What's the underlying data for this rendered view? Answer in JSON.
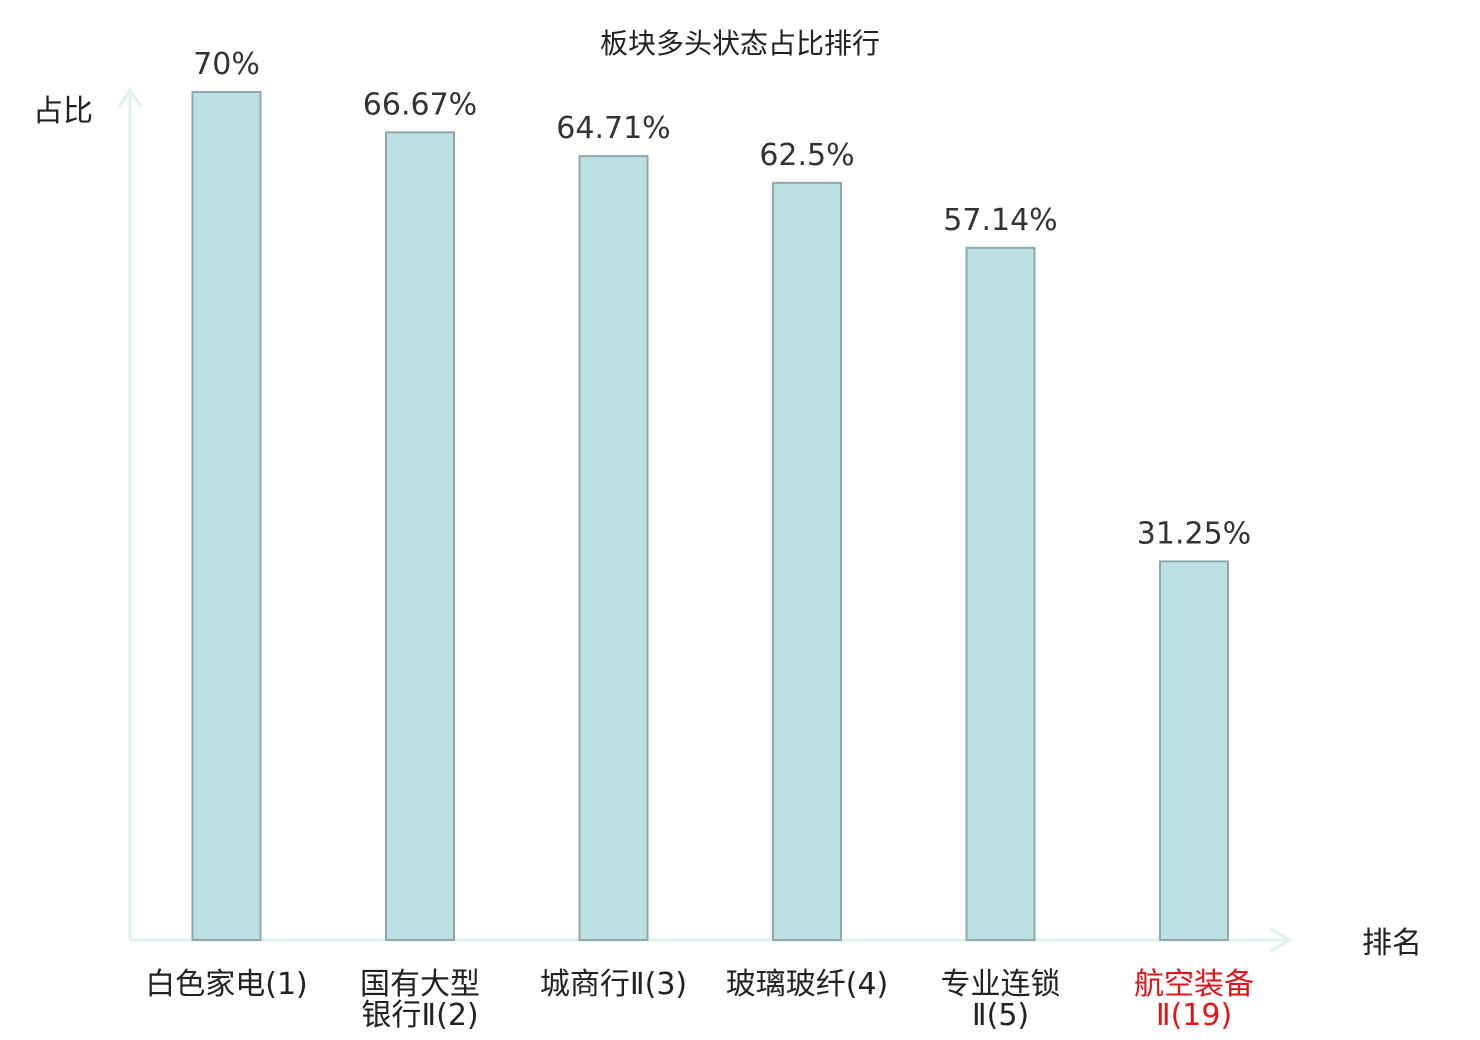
{
  "chart_data": {
    "type": "bar",
    "title": "板块多头状态占比排行",
    "ylabel": "占比",
    "xlabel": "排名",
    "ylim": [
      0,
      75
    ],
    "grid": false,
    "legend": "none",
    "categories": [
      {
        "lines": [
          "白色家电(1)"
        ],
        "highlight": false
      },
      {
        "lines": [
          "国有大型",
          "银行Ⅱ(2)"
        ],
        "highlight": false
      },
      {
        "lines": [
          "城商行Ⅱ(3)"
        ],
        "highlight": false
      },
      {
        "lines": [
          "玻璃玻纤(4)"
        ],
        "highlight": false
      },
      {
        "lines": [
          "专业连锁",
          "Ⅱ(5)"
        ],
        "highlight": false
      },
      {
        "lines": [
          "航空装备",
          "Ⅱ(19)"
        ],
        "highlight": true
      }
    ],
    "values": [
      70,
      66.67,
      64.71,
      62.5,
      57.14,
      31.25
    ],
    "value_labels": [
      "70%",
      "66.67%",
      "64.71%",
      "62.5%",
      "57.14%",
      "31.25%"
    ]
  },
  "colors": {
    "bar_fill": "#bce0e3",
    "bar_stroke": "#8fa9ab",
    "axis": "#dff2ef",
    "text": "#222222",
    "highlight": "#e0161b"
  }
}
